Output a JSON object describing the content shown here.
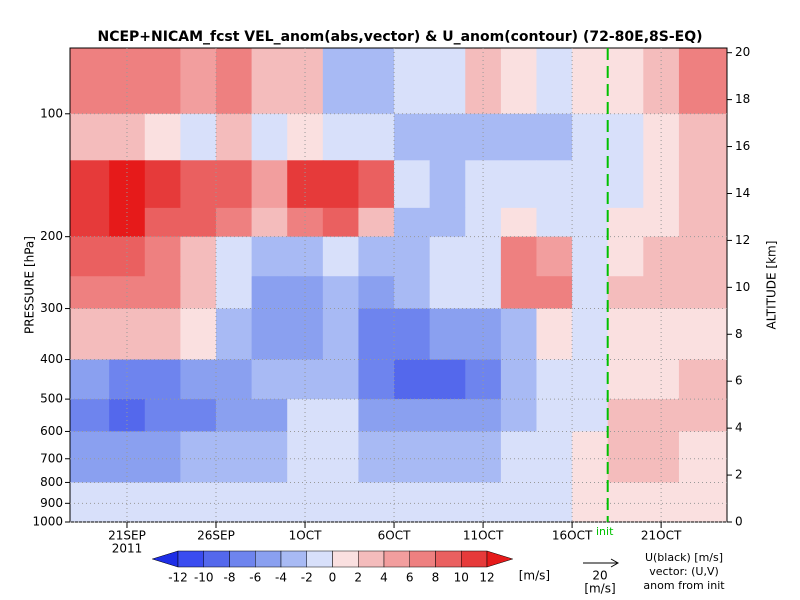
{
  "chart_data": {
    "type": "contour",
    "title": "NCEP+NICAM_fcst VEL_anom(abs,vector) & U_anom(contour)   (72-80E,8S-EQ)",
    "ylabel": "PRESSURE [hPa]",
    "y2label": "ALTITUDE [km]",
    "x_year": "2011",
    "xlim": [
      17.8,
      54.7
    ],
    "xticks": [
      {
        "value": 21,
        "label": "21SEP"
      },
      {
        "value": 26,
        "label": "26SEP"
      },
      {
        "value": 31,
        "label": "1OCT"
      },
      {
        "value": 36,
        "label": "6OCT"
      },
      {
        "value": 41,
        "label": "11OCT"
      },
      {
        "value": 46,
        "label": "16OCT"
      },
      {
        "value": 51,
        "label": "21OCT"
      }
    ],
    "ylim": [
      1000,
      69
    ],
    "ylog": true,
    "yticks": [
      100,
      200,
      300,
      400,
      500,
      600,
      700,
      800,
      900,
      1000
    ],
    "y2lim": [
      0,
      20.2
    ],
    "y2ticks": [
      0,
      2,
      4,
      6,
      8,
      10,
      12,
      14,
      16,
      18,
      20
    ],
    "grid": true,
    "x_edges": [
      17.8,
      20,
      22,
      24,
      26,
      28,
      30,
      32,
      34,
      36,
      38,
      40,
      42,
      44,
      46,
      48,
      50,
      52,
      54.7
    ],
    "p_edges": [
      69,
      100,
      130,
      170,
      200,
      250,
      300,
      400,
      500,
      600,
      800,
      1000
    ],
    "field": [
      [
        6,
        7,
        6,
        5,
        6,
        3,
        2,
        -3,
        -4,
        -2,
        -1,
        2,
        1,
        -1,
        0,
        1,
        2,
        6
      ],
      [
        3,
        2,
        1,
        -1,
        2,
        -2,
        1,
        -2,
        -1,
        -3,
        -3,
        -4,
        -4,
        -3,
        -1,
        -1,
        1,
        2
      ],
      [
        10,
        12,
        10,
        8,
        8,
        4,
        10,
        11,
        8,
        -2,
        -3,
        -2,
        -1,
        -2,
        -1,
        -1,
        1,
        2
      ],
      [
        11,
        12,
        9,
        8,
        6,
        2,
        6,
        8,
        2,
        -3,
        -3,
        -2,
        1,
        -2,
        -1,
        0,
        1,
        2
      ],
      [
        8,
        8,
        7,
        3,
        -1,
        -4,
        -3,
        -2,
        -4,
        -3,
        -2,
        -1,
        6,
        4,
        -1,
        1,
        2,
        3
      ],
      [
        6,
        7,
        6,
        3,
        -2,
        -5,
        -6,
        -4,
        -5,
        -3,
        -2,
        -1,
        6,
        7,
        -1,
        2,
        2,
        3
      ],
      [
        2,
        3,
        3,
        1,
        -3,
        -6,
        -5,
        -4,
        -7,
        -8,
        -6,
        -6,
        -4,
        1,
        -1,
        1,
        1,
        1
      ],
      [
        -6,
        -8,
        -8,
        -6,
        -5,
        -4,
        -4,
        -3,
        -8,
        -10,
        -9,
        -8,
        -4,
        -1,
        -1,
        1,
        1,
        2
      ],
      [
        -8,
        -9,
        -8,
        -7,
        -6,
        -5,
        -2,
        -2,
        -5,
        -6,
        -6,
        -5,
        -3,
        -2,
        -1,
        2,
        2,
        2
      ],
      [
        -5,
        -6,
        -5,
        -4,
        -4,
        -3,
        -2,
        -2,
        -3,
        -3,
        -3,
        -3,
        -2,
        -1,
        1,
        2,
        2,
        1
      ],
      [
        -2,
        -2,
        -2,
        -2,
        -2,
        -1,
        -2,
        -2,
        -2,
        -2,
        -2,
        -2,
        -1,
        -1,
        1,
        1,
        1,
        0
      ]
    ],
    "init": {
      "value": 48,
      "label": "init",
      "color": "#00c000"
    },
    "colorbar": {
      "levels": [
        -12,
        -10,
        -8,
        -6,
        -4,
        -2,
        0,
        2,
        4,
        6,
        8,
        10,
        12
      ],
      "colors": [
        "#1e2ee6",
        "#3a4cf0",
        "#5468ec",
        "#6e84ee",
        "#8aa0f0",
        "#a8baf4",
        "#d8e0fa",
        "#fae0e0",
        "#f4bcbc",
        "#f29e9e",
        "#ee8080",
        "#ea6060",
        "#e63a3a",
        "#e61a1a"
      ],
      "unit": "[m/s]"
    },
    "reference_vector": {
      "value": 20,
      "unit": "[m/s]"
    },
    "legend_lines": [
      "U(black) [m/s]",
      "vector: (U,V)",
      "anom from init"
    ]
  }
}
